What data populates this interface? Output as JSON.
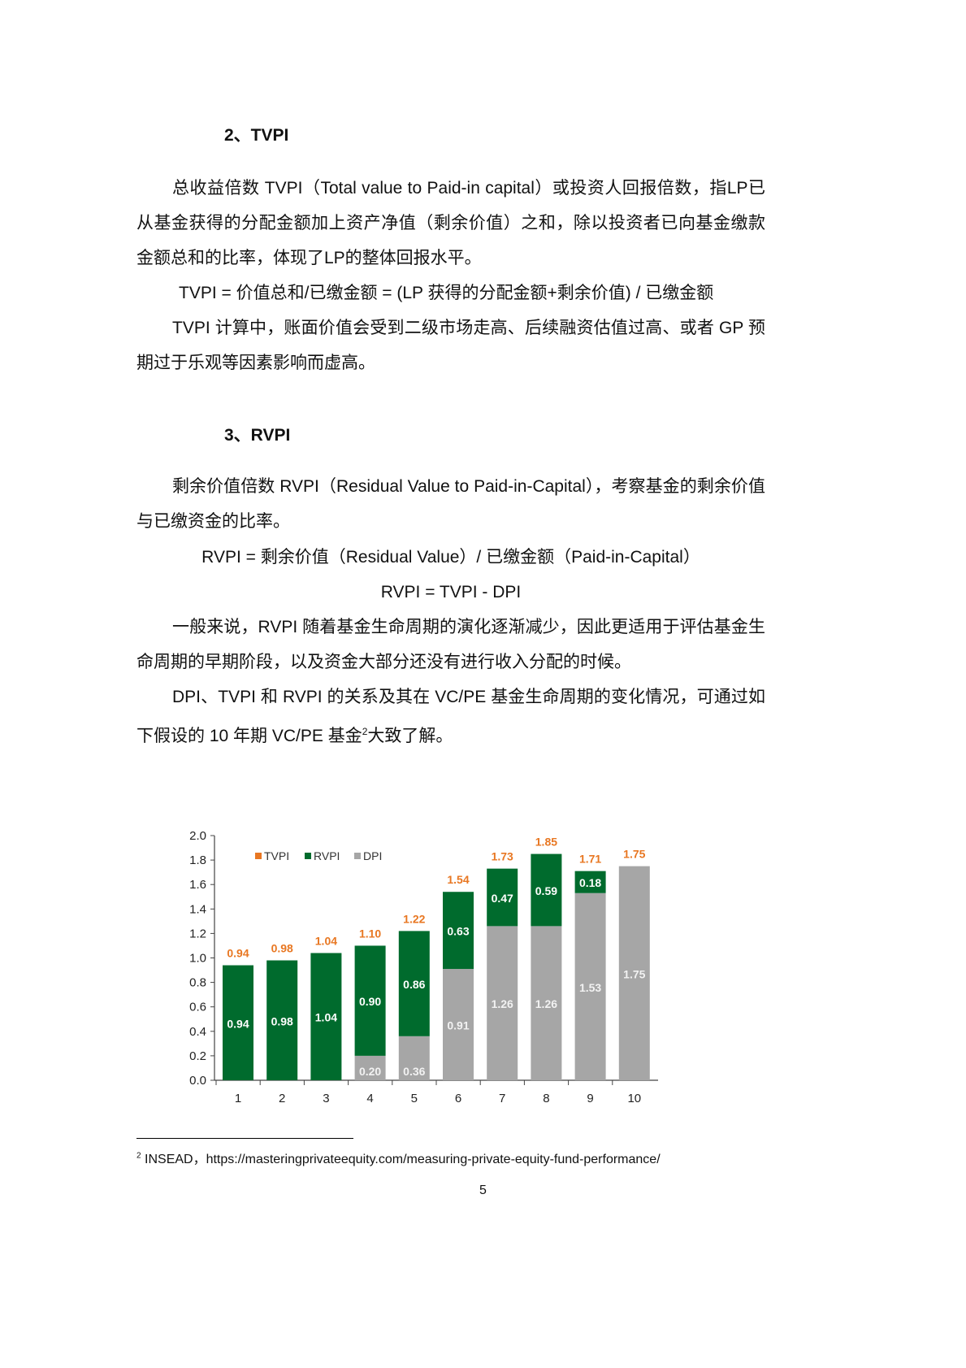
{
  "sections": [
    {
      "heading": "2、TVPI",
      "paragraphs": [
        "总收益倍数 TVPI（Total value to Paid-in capital）或投资人回报倍数，指LP已从基金获得的分配金额加上资产净值（剩余价值）之和，除以投资者已向基金缴款金额总和的比率，体现了LP的整体回报水平。",
        "TVPI = 价值总和/已缴金额 = (LP 获得的分配金额+剩余价值) / 已缴金额",
        "TVPI 计算中，账面价值会受到二级市场走高、后续融资估值过高、或者 GP 预期过于乐观等因素影响而虚高。"
      ]
    },
    {
      "heading": "3、RVPI",
      "paragraphs": [
        "剩余价值倍数 RVPI（Residual Value to Paid-in-Capital），考察基金的剩余价值与已缴资金的比率。",
        "RVPI = 剩余价值（Residual Value）/ 已缴金额（Paid-in-Capital）",
        "RVPI = TVPI - DPI",
        "一般来说，RVPI 随着基金生命周期的演化逐渐减少，因此更适用于评估基金生命周期的早期阶段，以及资金大部分还没有进行收入分配的时候。",
        "DPI、TVPI 和 RVPI 的关系及其在 VC/PE 基金生命周期的变化情况，可通过如下假设的 10 年期 VC/PE 基金",
        "大致了解。"
      ],
      "footnote_ref": "2"
    }
  ],
  "chart_data": {
    "type": "bar",
    "stacked": true,
    "categories": [
      "1",
      "2",
      "3",
      "4",
      "5",
      "6",
      "7",
      "8",
      "9",
      "10"
    ],
    "series": [
      {
        "name": "DPI",
        "color": "#a6a6a6",
        "values": [
          0,
          0,
          0,
          0.2,
          0.36,
          0.91,
          1.26,
          1.26,
          1.53,
          1.75
        ]
      },
      {
        "name": "RVPI",
        "color": "#006b2d",
        "values": [
          0.94,
          0.98,
          1.04,
          0.9,
          0.86,
          0.63,
          0.47,
          0.59,
          0.18,
          0
        ]
      }
    ],
    "totals": {
      "name": "TVPI",
      "color": "#e87722",
      "values": [
        0.94,
        0.98,
        1.04,
        1.1,
        1.22,
        1.54,
        1.73,
        1.85,
        1.71,
        1.75
      ]
    },
    "ylim": [
      0,
      2.0
    ],
    "yticks": [
      "0.0",
      "0.2",
      "0.4",
      "0.6",
      "0.8",
      "1.0",
      "1.2",
      "1.4",
      "1.6",
      "1.8",
      "2.0"
    ],
    "legend": [
      "TVPI",
      "RVPI",
      "DPI"
    ],
    "legend_position": "top-left",
    "grid": false
  },
  "footnote": {
    "mark": "2",
    "text": "INSEAD，https://masteringprivateequity.com/measuring-private-equity-fund-performance/"
  },
  "page_number": "5"
}
